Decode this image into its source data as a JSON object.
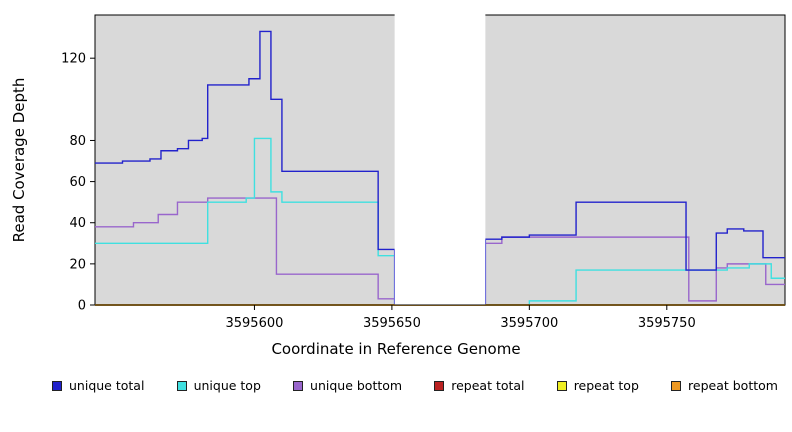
{
  "chart_data": {
    "type": "line",
    "style": "step",
    "title": "",
    "xlabel": "Coordinate in Reference Genome",
    "ylabel": "Read Coverage Depth",
    "x_ticks": [
      3595600,
      3595650,
      3595700,
      3595750
    ],
    "y_ticks": [
      0,
      20,
      40,
      60,
      80,
      120
    ],
    "xlim": [
      3595542,
      3595793
    ],
    "ylim": [
      0,
      141
    ],
    "plot_bg": "#d9d9d9",
    "gap_region": [
      3595651,
      3595684
    ],
    "grid": false,
    "legend_position": "bottom",
    "series": [
      {
        "name": "unique total",
        "color": "#2222cc",
        "points": [
          [
            3595542,
            69
          ],
          [
            3595552,
            70
          ],
          [
            3595562,
            71
          ],
          [
            3595566,
            75
          ],
          [
            3595572,
            76
          ],
          [
            3595576,
            80
          ],
          [
            3595581,
            81
          ],
          [
            3595583,
            107
          ],
          [
            3595598,
            110
          ],
          [
            3595602,
            133
          ],
          [
            3595606,
            100
          ],
          [
            3595610,
            65
          ],
          [
            3595645,
            27
          ],
          [
            3595651,
            0
          ],
          [
            3595684,
            32
          ],
          [
            3595690,
            33
          ],
          [
            3595700,
            34
          ],
          [
            3595717,
            50
          ],
          [
            3595757,
            17
          ],
          [
            3595768,
            35
          ],
          [
            3595772,
            37
          ],
          [
            3595778,
            36
          ],
          [
            3595785,
            23
          ]
        ]
      },
      {
        "name": "unique top",
        "color": "#3fe0e0",
        "points": [
          [
            3595542,
            30
          ],
          [
            3595583,
            50
          ],
          [
            3595597,
            52
          ],
          [
            3595600,
            81
          ],
          [
            3595606,
            55
          ],
          [
            3595610,
            50
          ],
          [
            3595645,
            24
          ],
          [
            3595651,
            0
          ],
          [
            3595684,
            0
          ],
          [
            3595700,
            2
          ],
          [
            3595717,
            17
          ],
          [
            3595772,
            18
          ],
          [
            3595780,
            20
          ],
          [
            3595788,
            13
          ]
        ]
      },
      {
        "name": "unique bottom",
        "color": "#9966cc",
        "points": [
          [
            3595542,
            38
          ],
          [
            3595556,
            40
          ],
          [
            3595565,
            44
          ],
          [
            3595572,
            50
          ],
          [
            3595583,
            52
          ],
          [
            3595608,
            15
          ],
          [
            3595645,
            3
          ],
          [
            3595651,
            0
          ],
          [
            3595684,
            30
          ],
          [
            3595690,
            33
          ],
          [
            3595758,
            2
          ],
          [
            3595768,
            18
          ],
          [
            3595772,
            20
          ],
          [
            3595786,
            10
          ]
        ]
      },
      {
        "name": "repeat total",
        "color": "#bb2222",
        "points": [
          [
            3595542,
            0
          ]
        ]
      },
      {
        "name": "repeat top",
        "color": "#eeee22",
        "points": [
          [
            3595542,
            0
          ]
        ]
      },
      {
        "name": "repeat bottom",
        "color": "#ee9922",
        "points": [
          [
            3595542,
            0
          ]
        ]
      }
    ]
  }
}
